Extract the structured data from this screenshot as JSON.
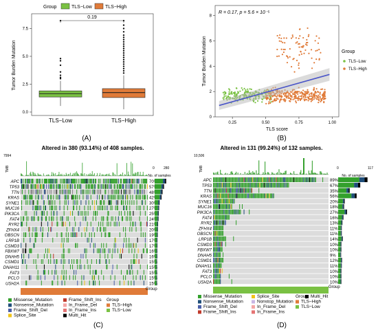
{
  "panel_labels": [
    "(A)",
    "(B)",
    "(C)",
    "(D)"
  ],
  "colors": {
    "tls_low": "#7ac143",
    "tls_high": "#e07b39",
    "missense": "#33a02c",
    "nonsense": "#1f4e79",
    "frame_shift_del": "#4b5fa8",
    "splice_site": "#f0c419",
    "frame_shift_ins": "#c0392b",
    "in_frame_del": "#f4a6a6",
    "in_frame_ins": "#e57373",
    "nonstop": "#c9b6e4",
    "multi_hit": "#000000",
    "regression_line": "#4a55c8",
    "band": "#b8b8b8",
    "cell_bg": "#dcdcdc"
  },
  "chart_data": [
    {
      "type": "box",
      "panel": "(A)",
      "legend_title": "Group",
      "legend_items": [
        "TLS−Low",
        "TLS−High"
      ],
      "categories": [
        "TLS−Low",
        "TLS−High"
      ],
      "ylabel": "Tumor Burden Mutation",
      "ylim": [
        0,
        8.7
      ],
      "yticks": [
        "0.0",
        "2.5",
        "5.0",
        "7.5"
      ],
      "significance": "0.19",
      "boxes": [
        {
          "q1": 1.35,
          "median": 1.65,
          "q3": 1.9,
          "whisker_low": 0.55,
          "whisker_high": 2.8,
          "outliers": [
            3.0,
            3.1,
            3.3,
            3.6,
            4.2,
            4.6,
            4.8,
            8.2
          ]
        },
        {
          "q1": 1.3,
          "median": 1.75,
          "q3": 2.1,
          "whisker_low": 0.25,
          "whisker_high": 3.3,
          "outliers": [
            3.5,
            3.7,
            3.9,
            4.1,
            4.3,
            4.5,
            4.7,
            4.9,
            5.1,
            5.3,
            5.5,
            5.7,
            5.9,
            6.1,
            6.3,
            6.5,
            6.7,
            6.9,
            7.2,
            7.5,
            7.8,
            8.2
          ]
        }
      ]
    },
    {
      "type": "scatter",
      "panel": "(B)",
      "annotation": "R = 0.17, p = 5.6 × 10⁻⁵",
      "xlabel": "TLS score",
      "ylabel": "Tumor Burden Mutation",
      "xlim": [
        0.12,
        1.05
      ],
      "ylim": [
        0,
        8.8
      ],
      "xticks": [
        "0.25",
        "0.50",
        "0.75",
        "1.00"
      ],
      "yticks": [
        "0",
        "2",
        "4",
        "6",
        "8"
      ],
      "legend_title": "Group",
      "legend_items": [
        "TLS−Low",
        "TLS−High"
      ],
      "regression": {
        "x1": 0.15,
        "y1": 0.9,
        "x2": 0.98,
        "y2": 3.35
      },
      "point_clouds": [
        {
          "group": "TLS−Low",
          "count": 200,
          "x_range": [
            0.18,
            0.55
          ],
          "y_center": 1.75,
          "y_spread": 0.45
        },
        {
          "group": "TLS−High",
          "count": 320,
          "x_range": [
            0.5,
            0.95
          ],
          "y_center": 1.7,
          "y_spread": 0.5
        },
        {
          "group": "TLS−High",
          "count": 80,
          "x_range": [
            0.58,
            0.92
          ],
          "y_center": 5.4,
          "y_spread": 1.5
        }
      ]
    },
    {
      "type": "heatmap",
      "panel": "(C)",
      "title": "Altered in 380 (93.14%) of 408 samples.",
      "tmb_max": "7994",
      "tmb_label": "TMB",
      "count_axis": [
        "0",
        "280"
      ],
      "count_label": "No. of samples",
      "genes": [
        "APC",
        "TP53",
        "TTN",
        "KRAS",
        "SYNE1",
        "MUC16",
        "PIK3CA",
        "FAT4",
        "RYR2",
        "ZFHX4",
        "OBSCN",
        "LRP1B",
        "CSMD3",
        "FBXW7",
        "DNAH5",
        "CSMD1",
        "DNAH11",
        "FAT3",
        "PCLO",
        "USH2A"
      ],
      "percentages": [
        "70%",
        "57%",
        "48%",
        "42%",
        "30%",
        "27%",
        "25%",
        "24%",
        "21%",
        "20%",
        "19%",
        "17%",
        "17%",
        "16%",
        "16%",
        "15%",
        "15%",
        "15%",
        "15%",
        "15%"
      ],
      "group_label": "Group",
      "legend_items": [
        "Missense_Mutation",
        "Nonsense_Mutation",
        "Frame_Shift_Del",
        "Splice_Site",
        "Frame_Shift_Ins",
        "In_Frame_Del",
        "In_Frame_Ins",
        "Multi_Hit"
      ],
      "group_legend": [
        "TLS−High",
        "TLS−Low"
      ]
    },
    {
      "type": "heatmap",
      "panel": "(D)",
      "title": "Altered in 131 (99.24%) of 132 samples.",
      "tmb_max": "10,506",
      "tmb_label": "TMB",
      "count_axis": [
        "0",
        "117"
      ],
      "count_label": "No. of samples",
      "genes": [
        "APC",
        "TP53",
        "TTN",
        "KRAS",
        "SYNE1",
        "MUC16",
        "PIK3CA",
        "FAT4",
        "RYR2",
        "ZFHX4",
        "OBSCN",
        "LRP1B",
        "CSMD3",
        "FBXW7",
        "DNAH5",
        "CSMD1",
        "DNAH11",
        "FAT3",
        "PCLO",
        "USH2A"
      ],
      "percentages": [
        "89%",
        "67%",
        "35%",
        "56%",
        "20%",
        "18%",
        "27%",
        "16%",
        "13%",
        "11%",
        "11%",
        "14%",
        "10%",
        "10%",
        "9%",
        "12%",
        "11%",
        "10%",
        "10%",
        "10%"
      ],
      "group_label": "Group",
      "legend_items": [
        "Missense_Mutation",
        "Nonsense_Mutation",
        "Frame_Shift_Del",
        "Frame_Shift_Ins",
        "Splice_Site",
        "Nonstop_Mutation",
        "In_Frame_Del",
        "In_Frame_Ins",
        "Multi_Hit"
      ],
      "group_legend": [
        "TLS−High",
        "TLS−Low"
      ]
    }
  ]
}
